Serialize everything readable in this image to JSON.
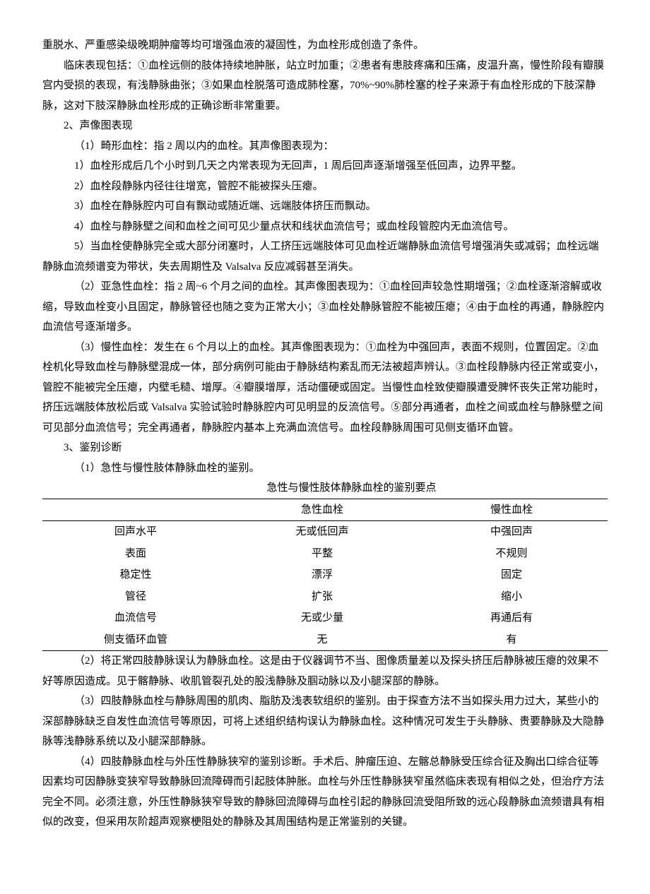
{
  "intro_lines": [
    "重脱水、严重感染级晚期肿瘤等均可增强血液的凝固性，为血栓形成创造了条件。",
    "临床表现包括：①血栓远侧的肢体持续地肿胀，站立时加重；②患者有患肢疼痛和压痛，皮温升高，慢性阶段有瓣膜宫内受损的表现，有浅静脉曲张；③如果血栓脱落可造成肺栓塞，70%~90%肺栓塞的栓子来源于有血栓形成的下肢深静脉，这对下肢深静脉血栓形成的正确诊断非常重要。"
  ],
  "section2": {
    "title": "2、声像图表现",
    "item1": {
      "title": "（1）畸形血栓：指 2 周以内的血栓。其声像图表现为：",
      "points": [
        "1）血栓形成后几个小时到几天之内常表现为无回声，1 周后回声逐渐增强至低回声，边界平整。",
        "2）血栓段静脉内径往往增宽，管腔不能被探头压瘪。",
        "3）血栓在静脉腔内可自有飘动或随近端、远端肢体挤压而飘动。",
        "4）血栓与静脉壁之间和血栓之间可见少量点状和线状血流信号；或血栓段管腔内无血流信号。",
        "5）当血栓使静脉完全或大部分闭塞时，人工挤压远端肢体可见血栓近端静脉血流信号增强消失或减弱；血栓远端静脉血流频谱变为带状，失去周期性及 Valsalva 反应减弱甚至消失。"
      ]
    },
    "item2": "（2）亚急性血栓：指 2 周~6 个月之间的血栓。其声像图表现为：①血栓回声较急性期增强；②血栓逐渐溶解或收缩，导致血栓变小且固定，静脉管径也随之变为正常大小；③血栓处静脉管腔不能被压瘪；④由于血栓的再通，静脉腔内血流信号逐渐增多。",
    "item3": "（3）慢性血栓：发生在 6 个月以上的血栓。其声像图表现为：①血栓为中强回声，表面不规则，位置固定。②血栓机化导致血栓与静脉壁混成一体，部分病例可能由于静脉结构紊乱而无法被超声辨认。③血栓段静脉内径正常或变小，管腔不能被完全压瘪，内壁毛糙、增厚。④瓣膜增厚，活动僵硬或固定。当慢性血栓致使瓣膜遭受脾怀丧失正常功能时，挤压远端肢体放松后或 Valsalva 实验试验时静脉腔内可见明显的反流信号。⑤部分再通者，血栓之间或血栓与静脉壁之间可见部分血流信号；完全再通者，静脉腔内基本上充满血流信号。血栓段静脉周围可见侧支循环血管。"
  },
  "section3": {
    "title": "3、鉴别诊断",
    "item1_title": "（1）急性与慢性肢体静脉血栓的鉴别。",
    "table_caption": "急性与慢性肢体静脉血栓的鉴别要点",
    "table": {
      "headers": [
        "",
        "急性血栓",
        "慢性血栓"
      ],
      "rows": [
        [
          "回声水平",
          "无或低回声",
          "中强回声"
        ],
        [
          "表面",
          "平整",
          "不规则"
        ],
        [
          "稳定性",
          "漂浮",
          "固定"
        ],
        [
          "管径",
          "扩张",
          "缩小"
        ],
        [
          "血流信号",
          "无或少量",
          "再通后有"
        ],
        [
          "侧支循环血管",
          "无",
          "有"
        ]
      ]
    },
    "item2": "（2）将正常四肢静脉误认为静脉血栓。这是由于仪器调节不当、图像质量差以及探头挤压后静脉被压瘪的效果不好等原因造成。见于髂静脉、收肌管裂孔处的股浅静脉及腘动脉以及小腿深部的静脉。",
    "item3": "（3）四肢静脉血栓与静脉周围的肌肉、脂肪及浅表软组织的鉴别。由于探查方法不当如探头用力过大，某些小的深部静脉缺乏自发性血流信号等原因，可将上述组织结构误认为静脉血栓。这种情况可发生于头静脉、贵要静脉及大隐静脉等浅静脉系统以及小腿深部静脉。",
    "item4": "（4）四肢静脉血栓与外压性静脉狭窄的鉴别诊断。手术后、肿瘤压迫、左髂总静脉受压综合征及胸出口综合征等因素均可因静脉变狭窄导致静脉回流障碍而引起肢体肿胀。血栓与外压性静脉狭窄虽然临床表现有相似之处，但治疗方法完全不同。必须注意，外压性静脉狭窄导致的静脉回流障碍与血栓引起的静脉回流受阻所致的远心段静脉血流频谱具有相似的改变，但采用灰阶超声观察梗阻处的静脉及其周围结构是正常鉴别的关键。"
  }
}
